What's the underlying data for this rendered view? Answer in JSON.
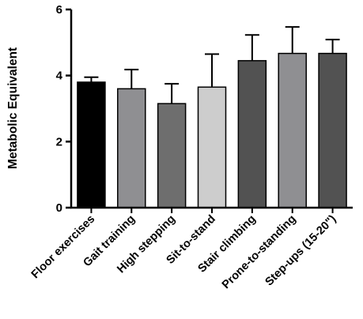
{
  "chart_data": {
    "type": "bar",
    "ylabel": "Metabolic Equivalent",
    "xlabel": "",
    "ylim": [
      0,
      6
    ],
    "yticks": [
      0,
      2,
      4,
      6
    ],
    "error_bars": "upper",
    "grid": false,
    "categories": [
      "Floor exercises",
      "Gait training",
      "High stepping",
      "Sit-to-stand",
      "Stair climbing",
      "Prone-to-standing",
      "Step-ups (15-20\")"
    ],
    "values": [
      3.8,
      3.6,
      3.15,
      3.65,
      4.45,
      4.67,
      4.67
    ],
    "errors": [
      0.15,
      0.58,
      0.6,
      1.0,
      0.78,
      0.8,
      0.42
    ],
    "colors": [
      "#000000",
      "#8f8f92",
      "#6e6e6e",
      "#cdcdcd",
      "#525252",
      "#8f8f92",
      "#525252"
    ]
  }
}
